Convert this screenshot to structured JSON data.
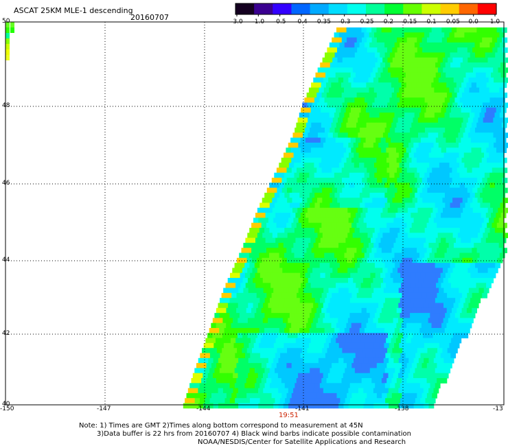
{
  "title": "ASCAT 25KM MLE-1 descending",
  "date": "20160707",
  "colorbar": {
    "ticks": [
      "-3.0",
      "-1.0",
      "-0.5",
      "-0.4",
      "-0.35",
      "-0.3",
      "-0.25",
      "-0.2",
      "-0.15",
      "-0.1",
      "-0.05",
      "0.0",
      "1.0"
    ],
    "colors": [
      "#140020",
      "#3a0090",
      "#3300ff",
      "#0066ff",
      "#00aaff",
      "#00ddff",
      "#00ffee",
      "#00ff99",
      "#00ff33",
      "#66ff00",
      "#ccff00",
      "#ffcc00",
      "#ff6600",
      "#ff0000"
    ]
  },
  "axes": {
    "lon_labels": [
      "-150",
      "-147",
      "-144",
      "-141",
      "-138",
      "-13"
    ],
    "lat_labels": [
      "50",
      "48",
      "46",
      "44",
      "42",
      "40"
    ]
  },
  "time_label": "19:51",
  "notes": [
    "Note: 1) Times are GMT 2)Times along bottom correspond to measurement at 45N",
    "3)Data buffer is 22 hrs from 20160707 4) Black wind barbs indicate possible contamination",
    "NOAA/NESDIS/Center for Satellite Applications and Research"
  ]
}
